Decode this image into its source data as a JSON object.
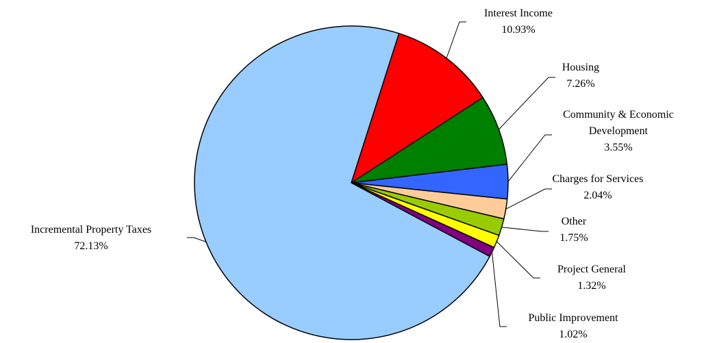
{
  "chart_data": {
    "type": "pie",
    "title": "",
    "slices": [
      {
        "label": "Interest Income",
        "value": 10.93,
        "display": "10.93%",
        "color": "#FF0000"
      },
      {
        "label": "Housing",
        "value": 7.26,
        "display": "7.26%",
        "color": "#008000"
      },
      {
        "label": "Community & Economic Development",
        "label_lines": [
          "Community & Economic",
          "Development"
        ],
        "value": 3.55,
        "display": "3.55%",
        "color": "#3366FF"
      },
      {
        "label": "Charges for Services",
        "value": 2.04,
        "display": "2.04%",
        "color": "#FFCC99"
      },
      {
        "label": "Other",
        "value": 1.75,
        "display": "1.75%",
        "color": "#99CC00"
      },
      {
        "label": "Project General",
        "value": 1.32,
        "display": "1.32%",
        "color": "#FFFF00"
      },
      {
        "label": "Public Improvement",
        "value": 1.02,
        "display": "1.02%",
        "color": "#800080"
      },
      {
        "label": "Incremental Property Taxes",
        "value": 72.13,
        "display": "72.13%",
        "color": "#99CCFF"
      }
    ],
    "legend": "none",
    "labels": "outside with leader lines"
  }
}
